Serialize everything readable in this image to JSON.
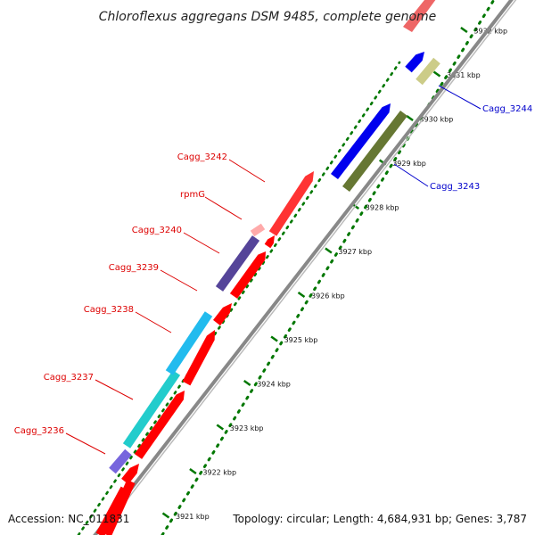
{
  "title": "Chloroflexus aggregans DSM 9485, complete genome",
  "footer": {
    "accession": "Accession: NC_011831",
    "topology": "Topology: circular; Length: 4,684,931 bp; Genes: 3,787"
  },
  "colors": {
    "forward_label": "#dd0000",
    "reverse_label": "#0000cc",
    "backbone": "#888888",
    "tick": "#007700"
  },
  "ticks": [
    "3921 kbp",
    "3922 kbp",
    "3923 kbp",
    "3924 kbp",
    "3925 kbp",
    "3926 kbp",
    "3927 kbp",
    "3928 kbp",
    "3929 kbp",
    "3930 kbp",
    "3931 kbp",
    "3932 kbp"
  ],
  "gene_labels": [
    {
      "name": "Cagg_3236",
      "strand": "forward"
    },
    {
      "name": "Cagg_3237",
      "strand": "forward"
    },
    {
      "name": "Cagg_3238",
      "strand": "forward"
    },
    {
      "name": "Cagg_3239",
      "strand": "forward"
    },
    {
      "name": "Cagg_3240",
      "strand": "forward"
    },
    {
      "name": "rpmG",
      "strand": "forward"
    },
    {
      "name": "Cagg_3242",
      "strand": "forward"
    },
    {
      "name": "Cagg_3243",
      "strand": "reverse"
    },
    {
      "name": "Cagg_3244",
      "strand": "reverse"
    }
  ],
  "features": [
    {
      "kind": "cds",
      "strand": "forward",
      "color": "#ff0000",
      "gene": ""
    },
    {
      "kind": "cds",
      "strand": "forward",
      "color": "#ff0000",
      "gene": "Cagg_3236"
    },
    {
      "kind": "cds",
      "strand": "forward",
      "color": "#ff0000",
      "gene": "Cagg_3237"
    },
    {
      "kind": "cds",
      "strand": "forward",
      "color": "#ff0000",
      "gene": "Cagg_3238"
    },
    {
      "kind": "cds",
      "strand": "forward",
      "color": "#ff0000",
      "gene": "Cagg_3239"
    },
    {
      "kind": "cds",
      "strand": "forward",
      "color": "#ff0000",
      "gene": "rpmG"
    },
    {
      "kind": "cds",
      "strand": "forward",
      "color": "#ff0000",
      "gene": "Cagg_3242"
    },
    {
      "kind": "cds",
      "strand": "forward",
      "color": "#ff3333",
      "gene": ""
    },
    {
      "kind": "category",
      "strand": "forward",
      "color": "#ff0000",
      "gene": ""
    },
    {
      "kind": "category",
      "strand": "forward",
      "color": "#7766dd",
      "gene": "Cagg_3236"
    },
    {
      "kind": "category",
      "strand": "forward",
      "color": "#22cccc",
      "gene": "Cagg_3237"
    },
    {
      "kind": "category",
      "strand": "forward",
      "color": "#22bbee",
      "gene": "Cagg_3238"
    },
    {
      "kind": "category",
      "strand": "forward",
      "color": "#554499",
      "gene": "Cagg_3239"
    },
    {
      "kind": "category",
      "strand": "forward",
      "color": "#ffaaaa",
      "gene": "rpmG"
    },
    {
      "kind": "category",
      "strand": "forward",
      "color": "#ee6666",
      "gene": ""
    },
    {
      "kind": "category",
      "strand": "reverse",
      "color": "#667733",
      "gene": "Cagg_3243"
    },
    {
      "kind": "cds",
      "strand": "reverse",
      "color": "#0000ee",
      "gene": "Cagg_3243"
    },
    {
      "kind": "category",
      "strand": "reverse",
      "color": "#cccc88",
      "gene": "Cagg_3244"
    },
    {
      "kind": "cds",
      "strand": "reverse",
      "color": "#0000ee",
      "gene": "Cagg_3244"
    }
  ]
}
